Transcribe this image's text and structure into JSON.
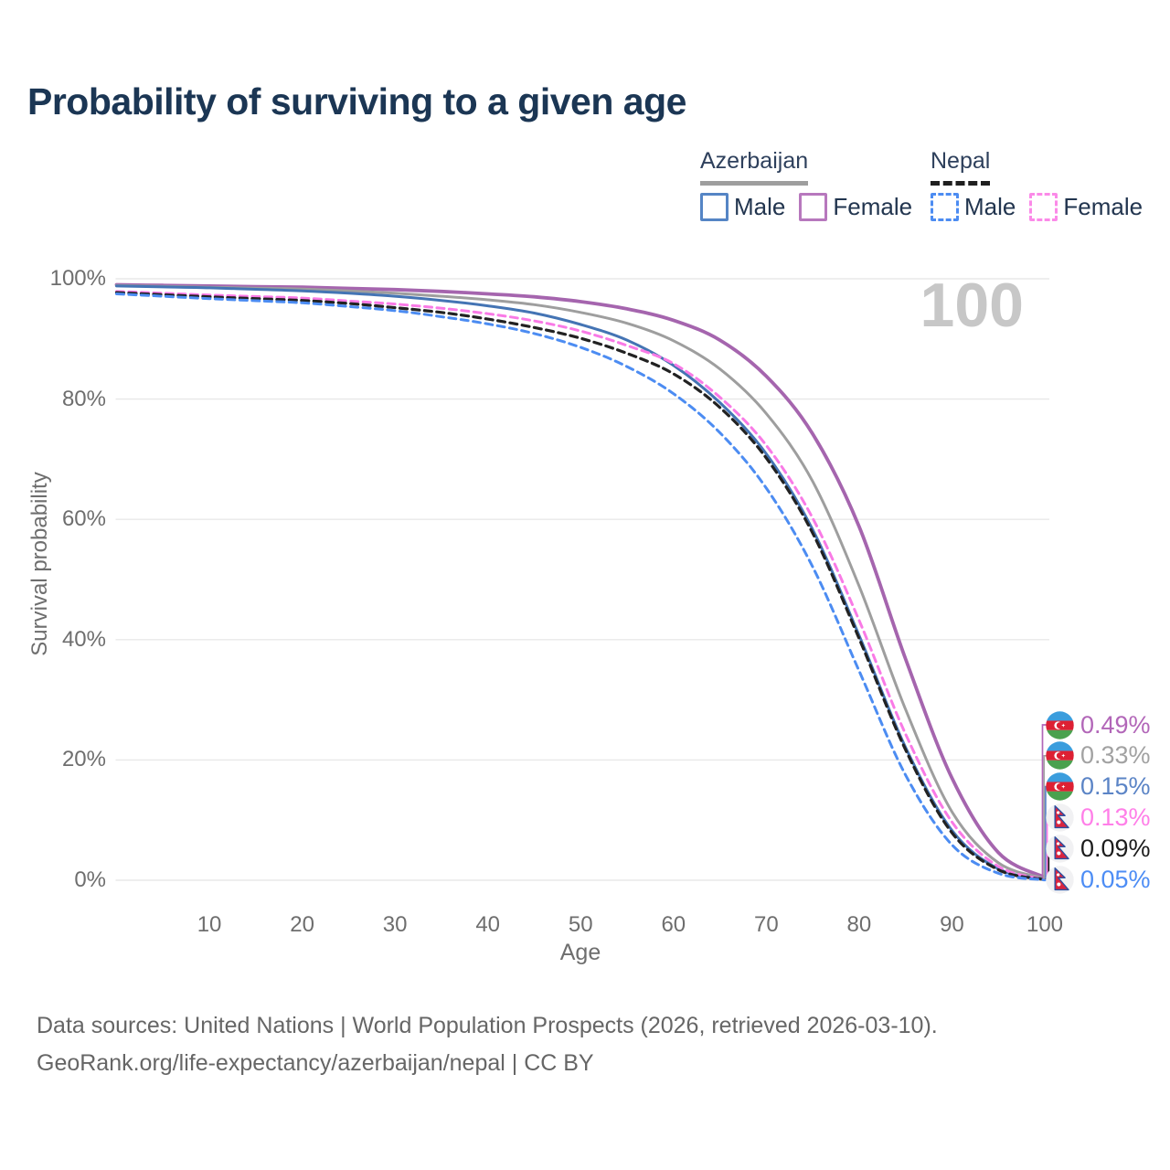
{
  "page": {
    "title": "Probability of surviving to a given age",
    "watermark_age": "100"
  },
  "legend": {
    "azerbaijan": {
      "name": "Azerbaijan",
      "male_label": "Male",
      "female_label": "Female",
      "male_color": "#5585c5",
      "female_color": "#b778bd",
      "line_color": "#9e9e9e",
      "line_style": "solid"
    },
    "nepal": {
      "name": "Nepal",
      "male_label": "Male",
      "female_label": "Female",
      "male_color": "#4c8cf2",
      "female_color": "#fb8ae8",
      "line_color": "#1f1f1f",
      "line_style": "dashed"
    }
  },
  "chart_data": {
    "type": "line",
    "title": "Probability of surviving to a given age",
    "xlabel": "Age",
    "ylabel": "Survival probability",
    "xlim": [
      0,
      100
    ],
    "ylim": [
      0,
      100
    ],
    "grid": "horizontal",
    "legend_position": "top-right",
    "x_ticks": [
      10,
      20,
      30,
      40,
      50,
      60,
      70,
      80,
      90,
      100
    ],
    "y_tick_values": [
      0,
      20,
      40,
      60,
      80,
      100
    ],
    "y_tick_labels": [
      "0%",
      "20%",
      "40%",
      "60%",
      "80%",
      "100%"
    ],
    "x": [
      0,
      5,
      10,
      15,
      20,
      25,
      30,
      35,
      40,
      45,
      50,
      55,
      60,
      65,
      70,
      75,
      80,
      85,
      90,
      95,
      100
    ],
    "series": [
      {
        "name": "Azerbaijan Female",
        "country": "Azerbaijan",
        "sex": "Female",
        "color": "#a565ae",
        "label_color": "#b266b8",
        "dash": false,
        "flag": "azerbaijan",
        "end_label": "0.49%",
        "values": [
          99.0,
          98.9,
          98.8,
          98.7,
          98.6,
          98.4,
          98.2,
          97.9,
          97.5,
          97.0,
          96.2,
          95.0,
          93.1,
          89.8,
          83.8,
          74.2,
          58.8,
          36.8,
          17.0,
          4.6,
          0.49
        ]
      },
      {
        "name": "Azerbaijan Both sexes",
        "country": "Azerbaijan",
        "sex": "Both",
        "color": "#9e9e9e",
        "label_color": "#a2a2a2",
        "dash": false,
        "flag": "azerbaijan",
        "end_label": "0.33%",
        "values": [
          98.9,
          98.75,
          98.6,
          98.45,
          98.3,
          98.0,
          97.6,
          97.1,
          96.5,
          95.7,
          94.4,
          92.6,
          89.7,
          85.0,
          77.6,
          66.3,
          48.9,
          28.4,
          11.4,
          2.9,
          0.33
        ]
      },
      {
        "name": "Azerbaijan Male",
        "country": "Azerbaijan",
        "sex": "Male",
        "color": "#4474b4",
        "label_color": "#5b84c6",
        "dash": false,
        "flag": "azerbaijan",
        "end_label": "0.15%",
        "values": [
          98.8,
          98.65,
          98.5,
          98.25,
          98.0,
          97.6,
          97.1,
          96.4,
          95.5,
          94.3,
          92.4,
          89.8,
          85.6,
          79.4,
          70.9,
          58.3,
          40.7,
          22.1,
          8.3,
          1.9,
          0.15
        ]
      },
      {
        "name": "Nepal Female",
        "country": "Nepal",
        "sex": "Female",
        "color": "#f97ae6",
        "label_color": "#ff7fe8",
        "dash": true,
        "flag": "nepal",
        "end_label": "0.13%",
        "values": [
          97.9,
          97.6,
          97.3,
          97.05,
          96.8,
          96.3,
          95.8,
          95.1,
          94.2,
          93.0,
          91.3,
          88.9,
          85.9,
          80.3,
          72.3,
          60.2,
          43.2,
          24.3,
          9.7,
          2.3,
          0.13
        ]
      },
      {
        "name": "Nepal Both sexes",
        "country": "Nepal",
        "sex": "Both",
        "color": "#222222",
        "label_color": "#1c1c1c",
        "dash": true,
        "flag": "nepal",
        "end_label": "0.09%",
        "values": [
          97.7,
          97.35,
          97.0,
          96.7,
          96.4,
          95.9,
          95.2,
          94.4,
          93.3,
          91.9,
          90.1,
          87.6,
          84.2,
          78.6,
          70.2,
          57.7,
          40.2,
          21.7,
          7.9,
          1.75,
          0.09
        ]
      },
      {
        "name": "Nepal Male",
        "country": "Nepal",
        "sex": "Male",
        "color": "#4c8cf2",
        "label_color": "#4d8df5",
        "dash": true,
        "flag": "nepal",
        "end_label": "0.05%",
        "values": [
          97.5,
          97.1,
          96.7,
          96.35,
          96.0,
          95.4,
          94.7,
          93.7,
          92.5,
          90.9,
          88.6,
          85.4,
          80.9,
          74.4,
          65.2,
          52.1,
          34.8,
          17.5,
          5.9,
          1.15,
          0.05
        ]
      }
    ]
  },
  "footer": {
    "line1": "Data sources: United Nations | World Population Prospects (2026, retrieved 2026-03-10).",
    "line2": "GeoRank.org/life-expectancy/azerbaijan/nepal | CC BY"
  }
}
